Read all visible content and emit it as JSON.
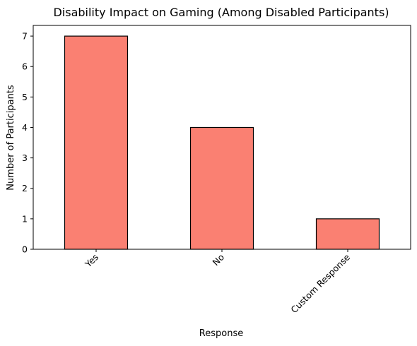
{
  "chart_data": {
    "type": "bar",
    "title": "Disability Impact on Gaming (Among Disabled Participants)",
    "xlabel": "Response",
    "ylabel": "Number of Participants",
    "categories": [
      "Yes",
      "No",
      "Custom Response"
    ],
    "values": [
      7,
      4,
      1
    ],
    "ylim": [
      0,
      7.35
    ],
    "yticks": [
      "0",
      "1",
      "2",
      "3",
      "4",
      "5",
      "6",
      "7"
    ],
    "bar_color": "#fa8072",
    "edge_color": "#000000",
    "grid": false,
    "legend": "none",
    "xtick_rotation_deg": 45
  }
}
